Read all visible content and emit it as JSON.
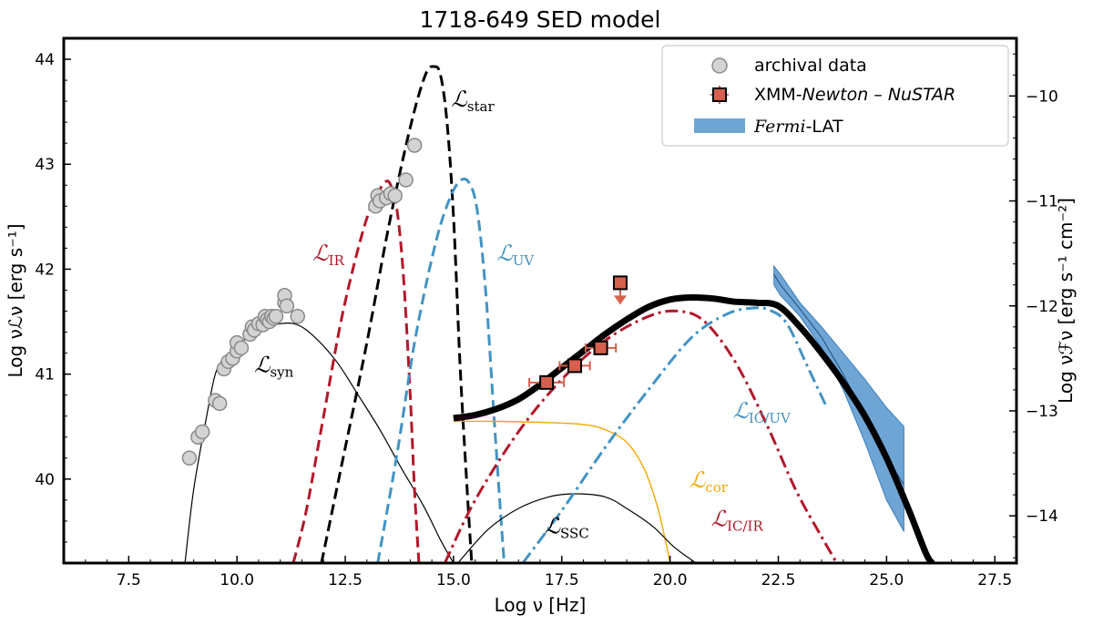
{
  "chart_data": {
    "type": "line",
    "title": "1718-649 SED model",
    "xlabel": "Log ν [Hz]",
    "ylabel": "Log νℒν [erg s⁻¹]",
    "y2label": "Log νℱν [erg s⁻¹ cm⁻²]",
    "xlim": [
      6,
      28
    ],
    "ylim": [
      39.2,
      44.2
    ],
    "y2lim": [
      -14.45,
      -9.45
    ],
    "xticks": [
      "7.5",
      "10.0",
      "12.5",
      "15.0",
      "17.5",
      "20.0",
      "22.5",
      "25.0",
      "27.5"
    ],
    "yticks": [
      "40",
      "41",
      "42",
      "43",
      "44"
    ],
    "y2ticks": [
      "−10",
      "−11",
      "−12",
      "−13",
      "−14"
    ],
    "legend": {
      "position": "top-right",
      "archival": "archival data",
      "xmm_prefix": "XMM-",
      "xmm_italic1": "Newton",
      "xmm_mid": " – ",
      "xmm_italic2": "NuSTAR",
      "fermi_italic": "Fermi",
      "fermi_suffix": "-LAT"
    },
    "curve_labels": {
      "star": "star",
      "ir": "IR",
      "uv": "UV",
      "syn": "syn",
      "ic_uv": "IC/UV",
      "cor": "cor",
      "ssc": "SSC",
      "ic_ir": "IC/IR",
      "script_L": "ℒ"
    },
    "colors": {
      "star": "#000000",
      "ir": "#b2182b",
      "uv": "#4393c3",
      "cor": "#f4a700",
      "total": "#000000",
      "xmm": "#d6604d",
      "fermi": "#4a8fc9",
      "archival_fill": "#d3d3d3",
      "archival_edge": "#8a8a8a"
    },
    "series": [
      {
        "name": "L_syn",
        "style": "solid-thin",
        "color": "#000000",
        "x": [
          8.8,
          9.0,
          9.3,
          9.5,
          9.7,
          10.0,
          10.5,
          11.0,
          11.4,
          11.8,
          12.3,
          12.8,
          13.3,
          13.8,
          14.3,
          14.7,
          15.0
        ],
        "y": [
          39.2,
          39.9,
          40.6,
          41.0,
          41.15,
          41.27,
          41.42,
          41.48,
          41.47,
          41.35,
          41.12,
          40.8,
          40.47,
          40.1,
          39.75,
          39.42,
          39.2
        ]
      },
      {
        "name": "L_IR",
        "style": "dashed",
        "color": "#b2182b",
        "x": [
          11.3,
          11.6,
          12.0,
          12.4,
          12.8,
          13.1,
          13.4,
          13.55,
          13.7,
          13.85,
          14.0,
          14.1,
          14.2
        ],
        "y": [
          39.2,
          39.7,
          40.6,
          41.5,
          42.2,
          42.6,
          42.82,
          42.8,
          42.55,
          41.9,
          40.8,
          39.9,
          39.2
        ]
      },
      {
        "name": "L_star",
        "style": "dashed",
        "color": "#000000",
        "x": [
          11.95,
          12.4,
          13.0,
          13.5,
          14.0,
          14.35,
          14.55,
          14.7,
          14.85,
          15.0,
          15.15,
          15.3,
          15.42
        ],
        "y": [
          39.2,
          40.1,
          41.3,
          42.4,
          43.35,
          43.85,
          43.93,
          43.85,
          43.4,
          42.5,
          41.1,
          40.0,
          39.2
        ]
      },
      {
        "name": "L_UV",
        "style": "dashed",
        "color": "#4393c3",
        "x": [
          13.25,
          13.7,
          14.1,
          14.5,
          14.8,
          15.1,
          15.35,
          15.55,
          15.75,
          15.95,
          16.1,
          16.17
        ],
        "y": [
          39.2,
          40.25,
          41.3,
          42.1,
          42.55,
          42.82,
          42.83,
          42.55,
          41.75,
          40.5,
          39.6,
          39.2
        ]
      },
      {
        "name": "L_cor",
        "style": "solid-thin",
        "color": "#f4a700",
        "x": [
          15.0,
          16.0,
          17.0,
          18.0,
          18.5,
          19.0,
          19.4,
          19.7,
          19.9,
          20.0
        ],
        "y": [
          40.55,
          40.55,
          40.54,
          40.52,
          40.47,
          40.35,
          40.1,
          39.75,
          39.4,
          39.2
        ]
      },
      {
        "name": "L_SSC",
        "style": "solid-thin",
        "color": "#000000",
        "x": [
          15.1,
          15.8,
          16.5,
          17.2,
          17.8,
          18.5,
          19.0,
          19.6,
          20.1,
          20.6
        ],
        "y": [
          39.2,
          39.52,
          39.72,
          39.83,
          39.86,
          39.83,
          39.72,
          39.55,
          39.35,
          39.2
        ]
      },
      {
        "name": "L_IC/IR",
        "style": "dashdot",
        "color": "#b2182b",
        "x": [
          14.8,
          15.5,
          16.5,
          17.5,
          18.5,
          19.5,
          20.2,
          20.8,
          21.5,
          22.2,
          22.9,
          23.5,
          23.85
        ],
        "y": [
          39.2,
          39.8,
          40.45,
          40.95,
          41.32,
          41.55,
          41.6,
          41.5,
          41.12,
          40.55,
          39.9,
          39.45,
          39.2
        ]
      },
      {
        "name": "L_IC/UV",
        "style": "dashdot",
        "color": "#4393c3",
        "x": [
          16.6,
          17.5,
          18.5,
          19.5,
          20.5,
          21.3,
          21.9,
          22.3,
          22.7,
          23.2,
          23.6
        ],
        "y": [
          39.2,
          39.7,
          40.3,
          40.85,
          41.35,
          41.57,
          41.63,
          41.61,
          41.48,
          41.05,
          40.7
        ]
      },
      {
        "name": "Total",
        "style": "solid-thick",
        "color": "#000000",
        "x": [
          15.0,
          15.5,
          16.0,
          16.5,
          17.0,
          17.5,
          18.0,
          18.5,
          19.0,
          19.5,
          20.0,
          20.5,
          21.0,
          21.5,
          22.0,
          22.5,
          23.0,
          23.5,
          24.0,
          24.5,
          25.0,
          25.5,
          25.9,
          26.05
        ],
        "y": [
          40.58,
          40.61,
          40.67,
          40.76,
          40.9,
          41.06,
          41.22,
          41.38,
          41.52,
          41.64,
          41.71,
          41.73,
          41.72,
          41.69,
          41.68,
          41.65,
          41.45,
          41.2,
          40.92,
          40.6,
          40.2,
          39.72,
          39.3,
          39.2
        ]
      }
    ],
    "archival": {
      "x": [
        8.9,
        9.1,
        9.2,
        9.5,
        9.6,
        9.7,
        9.8,
        9.9,
        10.0,
        10.0,
        10.1,
        10.3,
        10.35,
        10.4,
        10.5,
        10.6,
        10.65,
        10.7,
        10.75,
        10.8,
        10.85,
        10.9,
        11.1,
        11.1,
        11.15,
        11.4,
        13.2,
        13.25,
        13.3,
        13.45,
        13.55,
        13.65,
        13.9,
        14.1
      ],
      "y": [
        40.2,
        40.4,
        40.45,
        40.75,
        40.72,
        41.05,
        41.12,
        41.15,
        41.22,
        41.3,
        41.25,
        41.38,
        41.45,
        41.42,
        41.48,
        41.47,
        41.55,
        41.52,
        41.5,
        41.55,
        41.53,
        41.55,
        41.68,
        41.75,
        41.65,
        41.55,
        42.6,
        42.7,
        42.65,
        42.68,
        42.72,
        42.7,
        42.85,
        43.18
      ]
    },
    "xmm": {
      "x": [
        17.15,
        17.8,
        18.4
      ],
      "y": [
        40.92,
        41.08,
        41.25
      ],
      "xerr": [
        0.4,
        0.35,
        0.35
      ],
      "upper_limit": {
        "x": 18.85,
        "y": 41.87
      }
    },
    "fermi": {
      "x": [
        22.4,
        22.55,
        23.0,
        23.5,
        24.0,
        24.5,
        25.0,
        25.4
      ],
      "y_low": [
        41.85,
        41.75,
        41.55,
        41.25,
        40.85,
        40.35,
        39.8,
        39.5
      ],
      "y_high": [
        42.03,
        41.95,
        41.68,
        41.45,
        41.2,
        40.95,
        40.68,
        40.5
      ],
      "y_mid": [
        41.95,
        41.85,
        41.62,
        41.35,
        41.0,
        40.6,
        40.2,
        39.95
      ]
    }
  }
}
